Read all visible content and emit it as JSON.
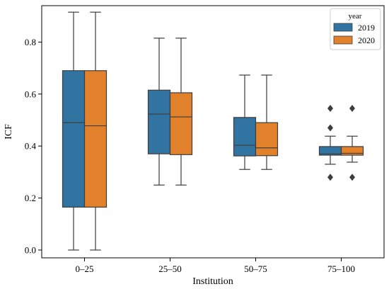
{
  "chart_data": {
    "type": "box",
    "xlabel": "Institution",
    "ylabel": "ICF",
    "categories": [
      "0–25",
      "25–50",
      "50–75",
      "75–100"
    ],
    "yticks": [
      "0.0",
      "0.2",
      "0.4",
      "0.6",
      "0.8"
    ],
    "ylim": [
      -0.03,
      0.94
    ],
    "grid": false,
    "legend": {
      "title": "year",
      "placement": "top-right"
    },
    "series": [
      {
        "name": "2019",
        "color": "#3274a1",
        "boxes": [
          {
            "whislo": 0.0,
            "q1": 0.165,
            "med": 0.49,
            "q3": 0.69,
            "whishi": 0.915,
            "fliers": []
          },
          {
            "whislo": 0.25,
            "q1": 0.37,
            "med": 0.523,
            "q3": 0.615,
            "whishi": 0.815,
            "fliers": []
          },
          {
            "whislo": 0.31,
            "q1": 0.362,
            "med": 0.403,
            "q3": 0.51,
            "whishi": 0.673,
            "fliers": []
          },
          {
            "whislo": 0.33,
            "q1": 0.365,
            "med": 0.37,
            "q3": 0.398,
            "whishi": 0.438,
            "fliers": [
              0.28,
              0.47,
              0.545
            ]
          }
        ]
      },
      {
        "name": "2020",
        "color": "#e1812c",
        "boxes": [
          {
            "whislo": 0.0,
            "q1": 0.165,
            "med": 0.478,
            "q3": 0.69,
            "whishi": 0.915,
            "fliers": []
          },
          {
            "whislo": 0.25,
            "q1": 0.367,
            "med": 0.512,
            "q3": 0.605,
            "whishi": 0.815,
            "fliers": []
          },
          {
            "whislo": 0.31,
            "q1": 0.363,
            "med": 0.393,
            "q3": 0.49,
            "whishi": 0.673,
            "fliers": []
          },
          {
            "whislo": 0.338,
            "q1": 0.365,
            "med": 0.372,
            "q3": 0.398,
            "whishi": 0.438,
            "fliers": [
              0.28,
              0.545
            ]
          }
        ]
      }
    ]
  }
}
